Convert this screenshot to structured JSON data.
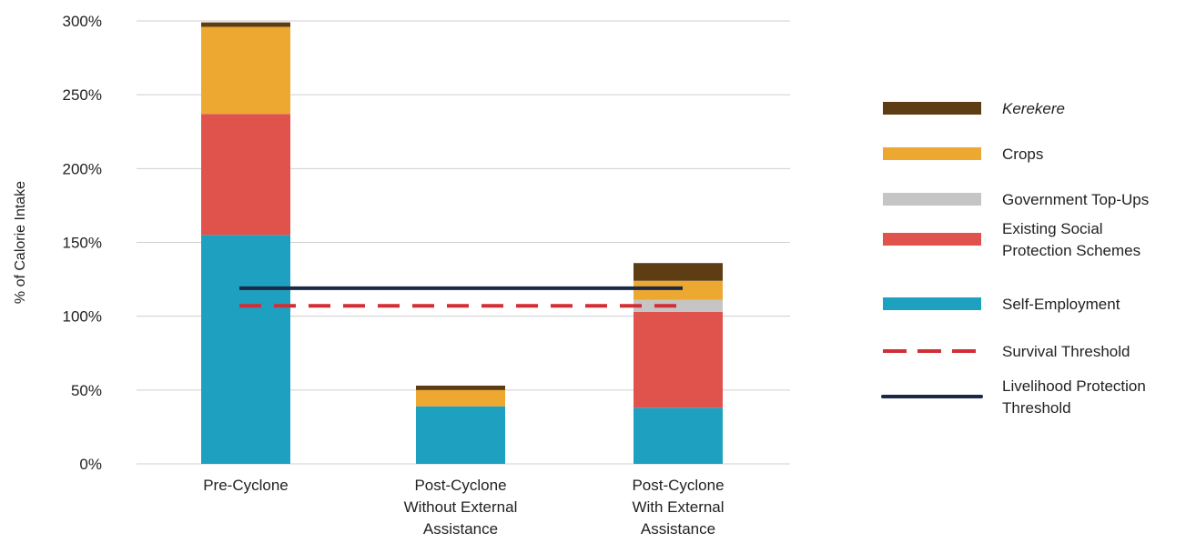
{
  "chart_data": {
    "type": "bar",
    "stacked": true,
    "ylabel": "% of Calorie Intake",
    "ylim": [
      0,
      300
    ],
    "yticks": [
      0,
      50,
      100,
      150,
      200,
      250,
      300
    ],
    "ytick_labels": [
      "0%",
      "50%",
      "100%",
      "150%",
      "200%",
      "250%",
      "300%"
    ],
    "grid": true,
    "legend_position": "right",
    "categories": [
      [
        "Pre-Cyclone"
      ],
      [
        "Post-Cyclone",
        "Without External",
        "Assistance"
      ],
      [
        "Post-Cyclone",
        "With External",
        "Assistance"
      ]
    ],
    "series": [
      {
        "name": "Self-Employment",
        "color": "#1ea1c1",
        "values": [
          155,
          39,
          38
        ]
      },
      {
        "name": "Existing Social Protection Schemes",
        "legend_lines": [
          "Existing Social",
          "Protection Schemes"
        ],
        "color": "#e0534d",
        "values": [
          82,
          0,
          65
        ]
      },
      {
        "name": "Government Top-Ups",
        "color": "#c5c5c5",
        "values": [
          0,
          0,
          8
        ]
      },
      {
        "name": "Crops",
        "color": "#eca830",
        "values": [
          59,
          11,
          13
        ]
      },
      {
        "name": "Kerekere",
        "italic": true,
        "color": "#5e3d14",
        "values": [
          3,
          3,
          12
        ]
      }
    ],
    "thresholds": [
      {
        "name": "Survival Threshold",
        "value": 107,
        "color": "#d12e35",
        "style": "dashed"
      },
      {
        "name": "Livelihood Protection Threshold",
        "legend_lines": [
          "Livelihood Protection",
          "Threshold"
        ],
        "value": 119,
        "color": "#1c2847",
        "style": "solid"
      }
    ]
  }
}
